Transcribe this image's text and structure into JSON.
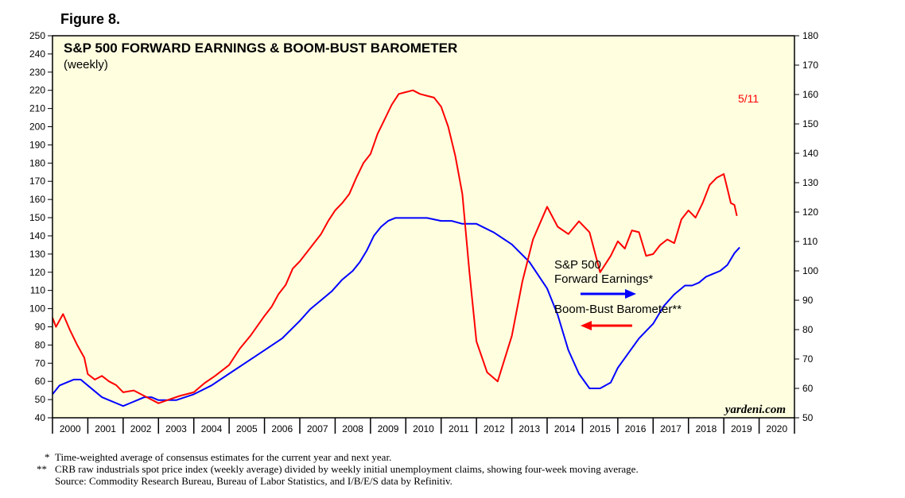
{
  "figure_label": "Figure 8.",
  "footnotes": [
    {
      "mark": "*",
      "text": "Time-weighted average of consensus estimates for the current year and next year."
    },
    {
      "mark": "**",
      "text": "CRB raw industrials spot price index (weekly average) divided by weekly initial unemployment claims, showing four-week moving average."
    },
    {
      "mark": "",
      "text": "Source: Commodity Research Bureau, Bureau of Labor Statistics, and I/B/E/S data by Refinitiv."
    }
  ],
  "chart_data": {
    "type": "line",
    "title": "S&P 500 FORWARD EARNINGS & BOOM-BUST BAROMETER",
    "subtitle": "(weekly)",
    "watermark": "yardeni.com",
    "end_annotation": "5/11",
    "plot_background": "#ffffe0",
    "grid": false,
    "legend_position": "center-right",
    "x_range": [
      2000.0,
      2021.0
    ],
    "x_ticks": [
      "2000",
      "2001",
      "2002",
      "2003",
      "2004",
      "2005",
      "2006",
      "2007",
      "2008",
      "2009",
      "2010",
      "2011",
      "2012",
      "2013",
      "2014",
      "2015",
      "2016",
      "2017",
      "2018",
      "2019",
      "2020"
    ],
    "y_left": {
      "range": [
        40,
        250
      ],
      "ticks": [
        40,
        50,
        60,
        70,
        80,
        90,
        100,
        110,
        120,
        130,
        140,
        150,
        160,
        170,
        180,
        190,
        200,
        210,
        220,
        230,
        240,
        250
      ]
    },
    "y_right": {
      "range": [
        50,
        180
      ],
      "ticks": [
        50,
        60,
        70,
        80,
        90,
        100,
        110,
        120,
        130,
        140,
        150,
        160,
        170,
        180
      ]
    },
    "series": [
      {
        "name": "S&P 500 Forward Earnings*",
        "legend_lines": [
          "S&P 500",
          "Forward Earnings*"
        ],
        "axis": "right",
        "color": "#0000ff",
        "legend_arrow": "right",
        "x": [
          2000.0,
          2000.2,
          2000.4,
          2000.6,
          2000.8,
          2001.0,
          2001.2,
          2001.4,
          2001.6,
          2001.8,
          2002.0,
          2002.2,
          2002.4,
          2002.6,
          2002.8,
          2003.0,
          2003.5,
          2004.0,
          2004.5,
          2005.0,
          2005.5,
          2006.0,
          2006.5,
          2007.0,
          2007.3,
          2007.6,
          2007.9,
          2008.2,
          2008.5,
          2008.7,
          2008.9,
          2009.1,
          2009.3,
          2009.5,
          2009.7,
          2010.0,
          2010.3,
          2010.6,
          2011.0,
          2011.3,
          2011.6,
          2012.0,
          2012.5,
          2013.0,
          2013.5,
          2014.0,
          2014.3,
          2014.6,
          2014.9,
          2015.2,
          2015.5,
          2015.8,
          2016.0,
          2016.3,
          2016.6,
          2017.0,
          2017.3,
          2017.6,
          2017.9,
          2018.1,
          2018.3,
          2018.5,
          2018.7,
          2018.9,
          2019.1,
          2019.3,
          2019.45
        ],
        "y": [
          58,
          61,
          62,
          63,
          63,
          61,
          59,
          57,
          56,
          55,
          54,
          55,
          56,
          57,
          57,
          56,
          56,
          58,
          61,
          65,
          69,
          73,
          77,
          83,
          87,
          90,
          93,
          97,
          100,
          103,
          107,
          112,
          115,
          117,
          118,
          118,
          118,
          118,
          117,
          117,
          116,
          116,
          113,
          109,
          103,
          94,
          85,
          73,
          65,
          60,
          60,
          62,
          67,
          72,
          77,
          82,
          88,
          92,
          95,
          95,
          96,
          98,
          99,
          100,
          102,
          106,
          108
        ]
      },
      {
        "name": "Boom-Bust Barometer**",
        "legend_lines": [
          "Boom-Bust Barometer**"
        ],
        "axis": "left",
        "color": "#ff0000",
        "legend_arrow": "left",
        "x": [
          2000.0,
          2000.1,
          2000.3,
          2000.5,
          2000.7,
          2000.9,
          2001.0,
          2001.2,
          2001.4,
          2001.6,
          2001.8,
          2002.0,
          2002.3,
          2002.6,
          2003.0,
          2003.3,
          2003.6,
          2004.0,
          2004.3,
          2004.6,
          2005.0,
          2005.3,
          2005.6,
          2006.0,
          2006.2,
          2006.4,
          2006.6,
          2006.8,
          2007.0,
          2007.2,
          2007.4,
          2007.6,
          2007.8,
          2008.0,
          2008.2,
          2008.4,
          2008.6,
          2008.8,
          2009.0,
          2009.2,
          2009.4,
          2009.6,
          2009.8,
          2010.0,
          2010.2,
          2010.4,
          2010.6,
          2010.8,
          2011.0,
          2011.2,
          2011.4,
          2011.6,
          2011.8,
          2012.0,
          2012.3,
          2012.6,
          2013.0,
          2013.3,
          2013.6,
          2014.0,
          2014.3,
          2014.6,
          2014.9,
          2015.2,
          2015.5,
          2015.8,
          2016.0,
          2016.2,
          2016.4,
          2016.6,
          2016.8,
          2017.0,
          2017.2,
          2017.4,
          2017.6,
          2017.8,
          2018.0,
          2018.2,
          2018.4,
          2018.6,
          2018.8,
          2019.0,
          2019.1,
          2019.2,
          2019.3,
          2019.37
        ],
        "y": [
          95,
          90,
          97,
          88,
          80,
          73,
          64,
          61,
          63,
          60,
          58,
          54,
          55,
          52,
          48,
          50,
          52,
          54,
          59,
          63,
          69,
          78,
          85,
          96,
          101,
          108,
          113,
          122,
          126,
          131,
          136,
          141,
          148,
          154,
          158,
          163,
          172,
          180,
          185,
          196,
          204,
          212,
          218,
          219,
          220,
          218,
          217,
          216,
          211,
          200,
          184,
          163,
          120,
          82,
          65,
          60,
          85,
          115,
          138,
          156,
          145,
          141,
          148,
          142,
          120,
          129,
          137,
          133,
          143,
          142,
          129,
          130,
          135,
          138,
          136,
          149,
          154,
          150,
          158,
          168,
          172,
          174,
          166,
          158,
          157,
          151
        ]
      }
    ]
  }
}
